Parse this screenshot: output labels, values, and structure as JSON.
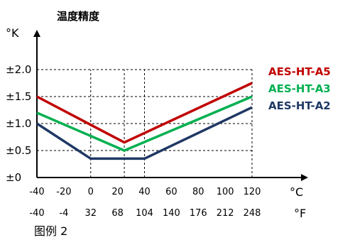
{
  "chart_data": {
    "type": "line",
    "title": "温度精度",
    "ylabel": "°K",
    "xlabel": "°C",
    "xlabel_secondary": "°F",
    "x": [
      -40,
      25,
      40,
      120
    ],
    "x_ticks": [
      "-40",
      "-20",
      "0",
      "20",
      "40",
      "60",
      "80",
      "100",
      "120"
    ],
    "x_ticks_f": [
      "-40",
      "-4",
      "32",
      "68",
      "104",
      "140",
      "176",
      "212",
      "248"
    ],
    "y_ticks": [
      "±0",
      "±0.5",
      "±1.0",
      "±1.5",
      "±2.0"
    ],
    "xlim": [
      -40,
      120
    ],
    "ylim": [
      0,
      2.3
    ],
    "gridlines": {
      "y": [
        0.5,
        1.0,
        1.5,
        2.0
      ],
      "x": [
        0,
        25,
        40,
        120
      ],
      "style": "dashed"
    },
    "series": [
      {
        "name": "AES-HT-A5",
        "color": "#c00000",
        "points": [
          [
            -40,
            1.5
          ],
          [
            25,
            0.65
          ],
          [
            120,
            1.75
          ]
        ]
      },
      {
        "name": "AES-HT-A3",
        "color": "#00b050",
        "points": [
          [
            -40,
            1.2
          ],
          [
            25,
            0.5
          ],
          [
            120,
            1.5
          ]
        ]
      },
      {
        "name": "AES-HT-A2",
        "color": "#1f3864",
        "points": [
          [
            -40,
            1.0
          ],
          [
            0,
            0.35
          ],
          [
            40,
            0.35
          ],
          [
            120,
            1.3
          ]
        ]
      }
    ],
    "legend_position": "right"
  },
  "caption": "图例 2"
}
